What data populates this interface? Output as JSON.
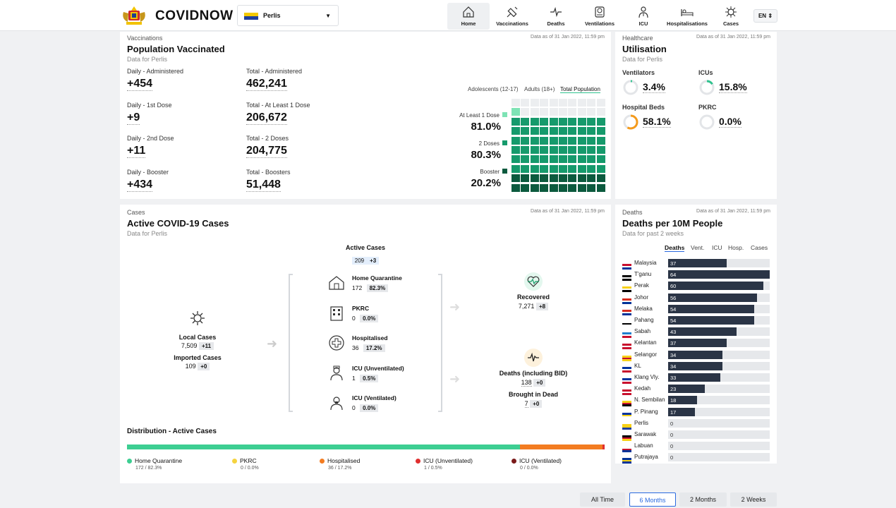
{
  "header": {
    "brand": "COVIDNOW",
    "state": "Perlis",
    "lang": "EN",
    "nav": [
      {
        "label": "Home",
        "icon": "home-icon"
      },
      {
        "label": "Vaccinations",
        "icon": "syringe-icon"
      },
      {
        "label": "Deaths",
        "icon": "heartbeat-icon"
      },
      {
        "label": "Ventilations",
        "icon": "ventilator-icon"
      },
      {
        "label": "ICU",
        "icon": "icu-icon"
      },
      {
        "label": "Hospitalisations",
        "icon": "hospital-bed-icon"
      },
      {
        "label": "Cases",
        "icon": "virus-icon"
      }
    ]
  },
  "vax": {
    "section": "Vaccinations",
    "title": "Population Vaccinated",
    "sub": "Data for Perlis",
    "asof": "Data as of 31 Jan 2022, 11:59 pm",
    "stats": [
      {
        "l1": "Daily - Administered",
        "v1": "+454",
        "l2": "Total - Administered",
        "v2": "462,241"
      },
      {
        "l1": "Daily - 1st Dose",
        "v1": "+9",
        "l2": "Total - At Least 1 Dose",
        "v2": "206,672"
      },
      {
        "l1": "Daily - 2nd Dose",
        "v1": "+11",
        "l2": "Total - 2 Doses",
        "v2": "204,775"
      },
      {
        "l1": "Daily - Booster",
        "v1": "+434",
        "l2": "Total - Boosters",
        "v2": "51,448"
      }
    ],
    "tabs": [
      "Adolescents (12-17)",
      "Adults (18+)",
      "Total Population"
    ],
    "legend": [
      {
        "label": "At Least 1 Dose",
        "pct": "81.0%",
        "color": "#7ee3b5",
        "value": 81.0
      },
      {
        "label": "2 Doses",
        "pct": "80.3%",
        "color": "#169a6c",
        "value": 80.3
      },
      {
        "label": "Booster",
        "pct": "20.2%",
        "color": "#0c5a3e",
        "value": 20.2
      }
    ],
    "waffle_colors": {
      "empty": "#eceef0",
      "dose1": "#7ee3b5",
      "dose2": "#169a6c",
      "booster": "#0c5a3e"
    }
  },
  "util": {
    "section": "Healthcare",
    "title": "Utilisation",
    "sub": "Data for Perlis",
    "asof": "Data as of 31 Jan 2022, 11:59 pm",
    "items": [
      {
        "label": "Ventilators",
        "pct": "3.4%",
        "value": 3.4
      },
      {
        "label": "ICUs",
        "pct": "15.8%",
        "value": 15.8
      },
      {
        "label": "Hospital Beds",
        "pct": "58.1%",
        "value": 58.1
      },
      {
        "label": "PKRC",
        "pct": "0.0%",
        "value": 0.0
      }
    ],
    "color_low": "#2fc28e",
    "color_mid": "#f59b1c"
  },
  "cases": {
    "section": "Cases",
    "title": "Active COVID-19 Cases",
    "sub": "Data for Perlis",
    "asof": "Data as of 31 Jan 2022, 11:59 pm",
    "active": {
      "label": "Active Cases",
      "value": "209",
      "delta": "+3"
    },
    "local": {
      "label": "Local Cases",
      "value": "7,509",
      "delta": "+11"
    },
    "imported": {
      "label": "Imported Cases",
      "value": "109",
      "delta": "+0"
    },
    "flow": [
      {
        "label": "Home Quarantine",
        "value": "172",
        "pct": "82.3%",
        "icon": "house-icon"
      },
      {
        "label": "PKRC",
        "value": "0",
        "pct": "0.0%",
        "icon": "building-icon"
      },
      {
        "label": "Hospitalised",
        "value": "36",
        "pct": "17.2%",
        "icon": "medical-cross-icon"
      },
      {
        "label": "ICU (Unventilated)",
        "value": "1",
        "pct": "0.5%",
        "icon": "nurse-icon"
      },
      {
        "label": "ICU (Ventilated)",
        "value": "0",
        "pct": "0.0%",
        "icon": "ventilated-patient-icon"
      }
    ],
    "recovered": {
      "label": "Recovered",
      "value": "7,271",
      "delta": "+8"
    },
    "deaths": {
      "label": "Deaths (including BID)",
      "value": "138",
      "delta": "+0"
    },
    "bid": {
      "label": "Brought in Dead",
      "value": "7",
      "delta": "+0"
    },
    "dist_title": "Distribution - Active Cases",
    "dist": [
      {
        "label": "Home Quarantine",
        "sub": "172 / 82.3%",
        "color": "#3dce92",
        "value": 82.3
      },
      {
        "label": "PKRC",
        "sub": "0 / 0.0%",
        "color": "#f5d33f",
        "value": 0.0
      },
      {
        "label": "Hospitalised",
        "sub": "36 / 17.2%",
        "color": "#f37c21",
        "value": 17.2
      },
      {
        "label": "ICU (Unventilated)",
        "sub": "1 / 0.5%",
        "color": "#e02f2f",
        "value": 0.5
      },
      {
        "label": "ICU (Ventilated)",
        "sub": "0 / 0.0%",
        "color": "#7b1b1b",
        "value": 0.0
      }
    ]
  },
  "deaths10m": {
    "section": "Deaths",
    "title": "Deaths per 10M People",
    "sub": "Data for past 2 weeks",
    "asof": "Data as of 31 Jan 2022, 11:59 pm",
    "tabs": [
      "Deaths",
      "Vent.",
      "ICU",
      "Hosp.",
      "Cases"
    ],
    "rows": [
      {
        "name": "Malaysia",
        "v": 37
      },
      {
        "name": "T'ganu",
        "v": 64
      },
      {
        "name": "Perak",
        "v": 60
      },
      {
        "name": "Johor",
        "v": 56
      },
      {
        "name": "Melaka",
        "v": 54
      },
      {
        "name": "Pahang",
        "v": 54
      },
      {
        "name": "Sabah",
        "v": 43
      },
      {
        "name": "Kelantan",
        "v": 37
      },
      {
        "name": "Selangor",
        "v": 34
      },
      {
        "name": "KL",
        "v": 34
      },
      {
        "name": "Klang Vly.",
        "v": 33
      },
      {
        "name": "Kedah",
        "v": 23
      },
      {
        "name": "N. Sembilan",
        "v": 18
      },
      {
        "name": "P. Pinang",
        "v": 17
      },
      {
        "name": "Perlis",
        "v": 0
      },
      {
        "name": "Sarawak",
        "v": 0
      },
      {
        "name": "Labuan",
        "v": 0
      },
      {
        "name": "Putrajaya",
        "v": 0
      }
    ],
    "max": 64,
    "bar_color": "#2b3546",
    "track_color": "#e6e8eb"
  },
  "period": {
    "options": [
      "All Time",
      "6 Months",
      "2 Months",
      "2 Weeks"
    ],
    "selected": "6 Months"
  }
}
